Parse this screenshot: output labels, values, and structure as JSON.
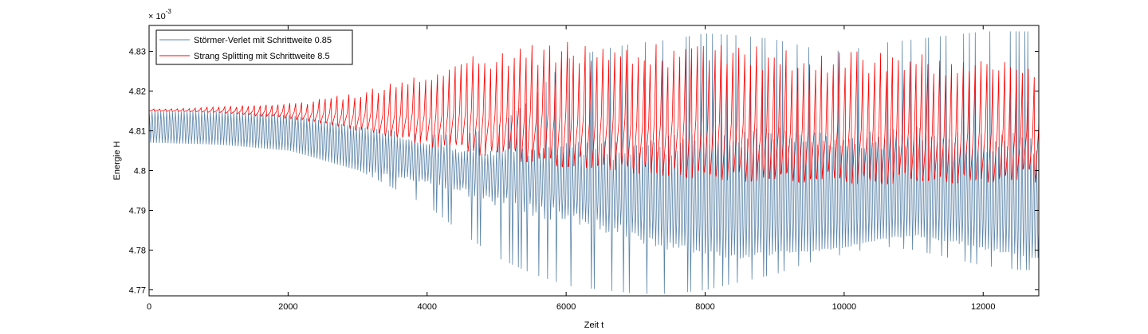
{
  "chart_data": {
    "type": "line",
    "title": "",
    "xlabel": "Zeit t",
    "ylabel": "Energie H",
    "y_exponent_label": "× 10",
    "y_exponent_power": "-3",
    "xlim": [
      0,
      12800
    ],
    "ylim": [
      4.7685,
      4.8365
    ],
    "x_ticks": [
      0,
      2000,
      4000,
      6000,
      8000,
      10000,
      12000
    ],
    "x_tick_labels": [
      "0",
      "2000",
      "4000",
      "6000",
      "8000",
      "10000",
      "12000"
    ],
    "y_ticks": [
      4.77,
      4.78,
      4.79,
      4.8,
      4.81,
      4.82,
      4.83
    ],
    "y_tick_labels": [
      "4.77",
      "4.78",
      "4.79",
      "4.8",
      "4.81",
      "4.82",
      "4.83"
    ],
    "grid": false,
    "legend_position": "top-left",
    "series": [
      {
        "name": "Störmer-Verlet mit Schrittweite 0.85",
        "color": "#5b84a8",
        "period": 42,
        "envelope": {
          "x": [
            0,
            1000,
            2000,
            3000,
            4000,
            4500,
            5000,
            5500,
            6000,
            6500,
            7000,
            7500,
            8000,
            8500,
            9000,
            9500,
            10000,
            10500,
            11000,
            11500,
            12000,
            12500,
            12800
          ],
          "upper": [
            4.815,
            4.8148,
            4.814,
            4.811,
            4.809,
            4.809,
            4.811,
            4.818,
            4.828,
            4.8305,
            4.832,
            4.833,
            4.8345,
            4.834,
            4.833,
            4.831,
            4.83,
            4.832,
            4.833,
            4.834,
            4.835,
            4.835,
            4.835
          ],
          "lower": [
            4.807,
            4.8065,
            4.805,
            4.8,
            4.791,
            4.784,
            4.778,
            4.774,
            4.771,
            4.77,
            4.769,
            4.769,
            4.77,
            4.772,
            4.774,
            4.777,
            4.779,
            4.781,
            4.78,
            4.778,
            4.776,
            4.775,
            4.775
          ],
          "band_high": [
            4.815,
            4.8148,
            4.814,
            4.811,
            4.806,
            4.804,
            4.803,
            4.802,
            4.801,
            4.8,
            4.8005,
            4.801,
            4.802,
            4.803,
            4.8035,
            4.804,
            4.8035,
            4.803,
            4.804,
            4.804,
            4.802,
            4.801,
            4.8
          ],
          "band_low": [
            4.807,
            4.8065,
            4.805,
            4.8,
            4.798,
            4.796,
            4.794,
            4.792,
            4.79,
            4.788,
            4.785,
            4.782,
            4.78,
            4.779,
            4.78,
            4.78,
            4.781,
            4.783,
            4.784,
            4.783,
            4.781,
            4.779,
            4.778
          ]
        }
      },
      {
        "name": "Strang Splitting mit Schrittweite 8.5",
        "color": "#ff0000",
        "period": 85,
        "envelope": {
          "x": [
            0,
            500,
            1000,
            2000,
            3000,
            4000,
            5000,
            6000,
            7000,
            8000,
            9000,
            10000,
            11000,
            12000,
            12800
          ],
          "upper": [
            4.8155,
            4.8157,
            4.8162,
            4.817,
            4.82,
            4.826,
            4.831,
            4.8325,
            4.832,
            4.832,
            4.831,
            4.83,
            4.8295,
            4.829,
            4.829
          ],
          "lower": [
            4.815,
            4.8148,
            4.8145,
            4.813,
            4.81,
            4.806,
            4.803,
            4.8005,
            4.799,
            4.7975,
            4.797,
            4.7965,
            4.7965,
            4.7965,
            4.797
          ]
        }
      }
    ]
  }
}
